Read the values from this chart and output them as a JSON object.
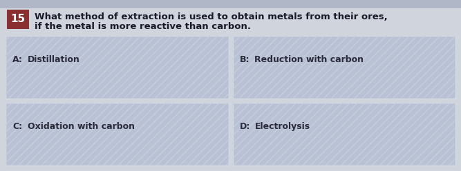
{
  "background_color": "#d0d4dc",
  "top_strip_color": "#b0b8c8",
  "question_number": "15",
  "question_number_bg": "#8b3030",
  "question_number_color": "#ffffff",
  "question_text_line1": "What method of extraction is used to obtain metals from their ores,",
  "question_text_line2": "if the metal is more reactive than carbon.",
  "question_text_color": "#1a1a2a",
  "question_fontsize": 9.5,
  "option_box_color": "#b8c2d4",
  "option_box_edge_color": "#d8dce4",
  "options": [
    {
      "label": "A:",
      "text": "Distillation",
      "col": 0,
      "row": 0
    },
    {
      "label": "B:",
      "text": "Reduction with carbon",
      "col": 1,
      "row": 0
    },
    {
      "label": "C:",
      "text": "Oxidation with carbon",
      "col": 0,
      "row": 1
    },
    {
      "label": "D:",
      "text": "Electrolysis",
      "col": 1,
      "row": 1
    }
  ],
  "option_label_color": "#2a2a3a",
  "option_text_color": "#2a2a3a",
  "option_fontsize": 9,
  "label_fontsize": 9
}
